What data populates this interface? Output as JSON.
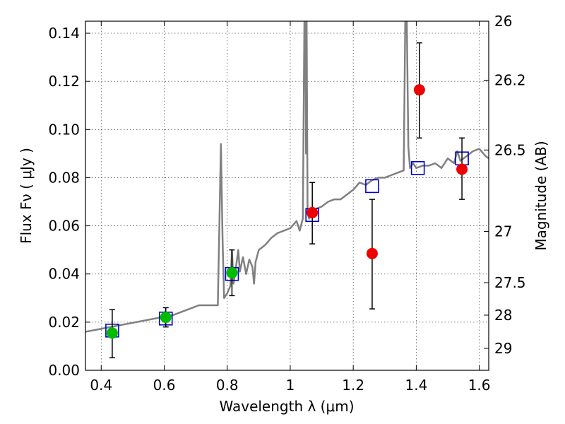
{
  "chart_data": {
    "type": "scatter",
    "xlabel": "Wavelength  λ (μm)",
    "ylabel": "Flux  Fν ( μJy )",
    "ylabel_right": "Magnitude (AB)",
    "xlim": [
      0.35,
      1.63
    ],
    "ylim": [
      0,
      0.145
    ],
    "grid": true,
    "x_ticks": [
      0.4,
      0.6,
      0.8,
      1.0,
      1.2,
      1.4,
      1.6
    ],
    "x_tick_labels": [
      "0.4",
      "0.6",
      "0.8",
      "1",
      "1.2",
      "1.4",
      "1.6"
    ],
    "y_ticks": [
      0.0,
      0.02,
      0.04,
      0.06,
      0.08,
      0.1,
      0.12,
      0.14
    ],
    "y_tick_labels": [
      "0.00",
      "0.02",
      "0.04",
      "0.06",
      "0.08",
      "0.10",
      "0.12",
      "0.14"
    ],
    "right_ticks": [
      {
        "label": "26",
        "flux": 0.145
      },
      {
        "label": "26.2",
        "flux": 0.1205
      },
      {
        "label": "26.5",
        "flux": 0.0915
      },
      {
        "label": "27",
        "flux": 0.0577
      },
      {
        "label": "27.5",
        "flux": 0.0364
      },
      {
        "label": "28",
        "flux": 0.0229
      },
      {
        "label": "29",
        "flux": 0.0091
      }
    ],
    "spectrum": {
      "color": "#808080",
      "x": [
        0.35,
        0.37,
        0.39,
        0.41,
        0.43,
        0.45,
        0.47,
        0.49,
        0.51,
        0.53,
        0.55,
        0.57,
        0.59,
        0.61,
        0.63,
        0.65,
        0.67,
        0.69,
        0.71,
        0.73,
        0.75,
        0.77,
        0.775,
        0.78,
        0.785,
        0.79,
        0.8,
        0.81,
        0.815,
        0.82,
        0.83,
        0.835,
        0.84,
        0.85,
        0.86,
        0.87,
        0.88,
        0.885,
        0.89,
        0.9,
        0.92,
        0.94,
        0.96,
        0.98,
        1.0,
        1.02,
        1.03,
        1.04,
        1.045,
        1.048,
        1.05,
        1.052,
        1.055,
        1.06,
        1.08,
        1.1,
        1.12,
        1.14,
        1.16,
        1.18,
        1.2,
        1.22,
        1.24,
        1.26,
        1.28,
        1.3,
        1.32,
        1.34,
        1.36,
        1.365,
        1.37,
        1.375,
        1.38,
        1.39,
        1.4,
        1.42,
        1.44,
        1.46,
        1.48,
        1.5,
        1.52,
        1.53,
        1.54,
        1.56,
        1.58,
        1.6,
        1.62,
        1.63
      ],
      "y": [
        0.016,
        0.0165,
        0.017,
        0.0175,
        0.018,
        0.0185,
        0.019,
        0.0195,
        0.02,
        0.0205,
        0.021,
        0.0215,
        0.022,
        0.0225,
        0.023,
        0.024,
        0.025,
        0.026,
        0.027,
        0.027,
        0.027,
        0.027,
        0.06,
        0.094,
        0.055,
        0.03,
        0.032,
        0.035,
        0.05,
        0.036,
        0.045,
        0.05,
        0.041,
        0.047,
        0.04,
        0.046,
        0.043,
        0.036,
        0.045,
        0.05,
        0.052,
        0.055,
        0.057,
        0.058,
        0.059,
        0.062,
        0.058,
        0.063,
        0.145,
        0.145,
        0.09,
        0.145,
        0.065,
        0.063,
        0.067,
        0.068,
        0.07,
        0.071,
        0.071,
        0.073,
        0.075,
        0.078,
        0.077,
        0.079,
        0.08,
        0.08,
        0.081,
        0.082,
        0.083,
        0.145,
        0.145,
        0.093,
        0.084,
        0.086,
        0.084,
        0.085,
        0.085,
        0.086,
        0.084,
        0.088,
        0.086,
        0.091,
        0.087,
        0.089,
        0.091,
        0.092,
        0.089,
        0.088
      ]
    },
    "series": [
      {
        "marker": "square",
        "color": "#0000cc",
        "points": [
          {
            "x": 0.435,
            "y": 0.0165
          },
          {
            "x": 0.605,
            "y": 0.0215
          },
          {
            "x": 0.815,
            "y": 0.04
          },
          {
            "x": 1.07,
            "y": 0.0645
          },
          {
            "x": 1.26,
            "y": 0.0765
          },
          {
            "x": 1.405,
            "y": 0.084
          },
          {
            "x": 1.545,
            "y": 0.088
          }
        ]
      },
      {
        "marker": "circle",
        "color": "#00bb00",
        "points": [
          {
            "x": 0.435,
            "y": 0.0155,
            "yerr_low": 0.0052,
            "yerr_high": 0.0252
          },
          {
            "x": 0.605,
            "y": 0.022,
            "yerr_low": 0.018,
            "yerr_high": 0.026
          },
          {
            "x": 0.815,
            "y": 0.0405,
            "yerr_low": 0.031,
            "yerr_high": 0.05
          }
        ]
      },
      {
        "marker": "circle",
        "color": "#ee0000",
        "points": [
          {
            "x": 1.07,
            "y": 0.0655,
            "yerr_low": 0.0525,
            "yerr_high": 0.078
          },
          {
            "x": 1.26,
            "y": 0.0485,
            "yerr_low": 0.0255,
            "yerr_high": 0.071
          },
          {
            "x": 1.41,
            "y": 0.1165,
            "yerr_low": 0.0965,
            "yerr_high": 0.136
          },
          {
            "x": 1.545,
            "y": 0.0835,
            "yerr_low": 0.071,
            "yerr_high": 0.0965
          }
        ]
      }
    ]
  }
}
